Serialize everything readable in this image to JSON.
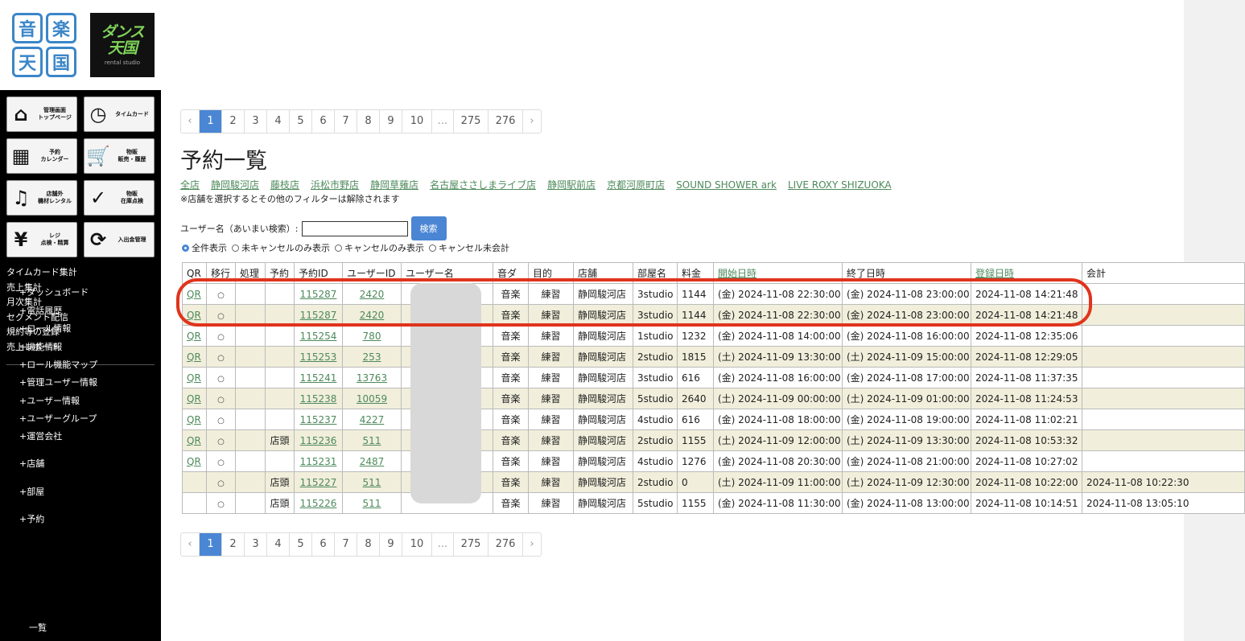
{
  "logos": {
    "logo1_chars": [
      "音",
      "楽",
      "天",
      "国"
    ],
    "logo2_main": "ダンス\n天国",
    "logo2_sub": "rental studio"
  },
  "sidebar": {
    "tiles": [
      {
        "label": "管理画面\nトップページ",
        "icon": "home-icon",
        "glyph": "⌂"
      },
      {
        "label": "タイムカード",
        "icon": "clock-icon",
        "glyph": "◷"
      },
      {
        "label": "予約\nカレンダー",
        "icon": "calendar-icon",
        "glyph": "▦"
      },
      {
        "label": "物販\n販売・履歴",
        "icon": "cart-icon",
        "glyph": "🛒"
      },
      {
        "label": "店舗外\n機材レンタル",
        "icon": "drum-icon",
        "glyph": "♫"
      },
      {
        "label": "物販\n在庫点検",
        "icon": "check-icon",
        "glyph": "✓"
      },
      {
        "label": "レジ\n点検・精算",
        "icon": "yen-icon",
        "glyph": "¥"
      },
      {
        "label": "入出金管理",
        "icon": "refresh-icon",
        "glyph": "⟳"
      }
    ],
    "links": [
      "タイムカード集計",
      "売上集計",
      "月次集計",
      "セグメント配信",
      "規約等の登録",
      "売上レポート"
    ],
    "menu": [
      "+ダッシュボード",
      "+電話履歴",
      "+ロール情報",
      "+機能情報",
      "+ロール機能マップ",
      "+管理ユーザー情報",
      "+ユーザー情報",
      "+ユーザーグループ",
      "+運営会社",
      "+店舗",
      "+部屋",
      "+予約"
    ],
    "submenu": [
      "一覧"
    ]
  },
  "pagination": {
    "prev": "‹",
    "next": "›",
    "pages": [
      "1",
      "2",
      "3",
      "4",
      "5",
      "6",
      "7",
      "8",
      "9",
      "10",
      "...",
      "275",
      "276"
    ],
    "active": "1"
  },
  "page": {
    "title": "予約一覧",
    "shops": [
      "全店",
      "静岡駿河店",
      "藤枝店",
      "浜松市野店",
      "静岡草薙店",
      "名古屋ささしまライブ店",
      "静岡駅前店",
      "京都河原町店",
      "SOUND SHOWER ark",
      "LIVE ROXY SHIZUOKA"
    ],
    "note": "※店舗を選択するとその他のフィルターは解除されます"
  },
  "search": {
    "label": "ユーザー名（あいまい検索）:",
    "value": "",
    "button": "検索"
  },
  "filters": [
    "全件表示",
    "未キャンセルのみ表示",
    "キャンセルのみ表示",
    "キャンセル未会計"
  ],
  "filter_selected": 0,
  "table": {
    "headers": [
      "QR",
      "移行",
      "処理",
      "予約",
      "予約ID",
      "ユーザーID",
      "ユーザー名",
      "音ダ",
      "目的",
      "店舗",
      "部屋名",
      "料金",
      "開始日時",
      "終了日時",
      "登録日時",
      "会計"
    ],
    "rows": [
      {
        "qr": "QR",
        "mig": "○",
        "proc": "",
        "rsv": "",
        "id": "115287",
        "uid": "2420",
        "genre": "音楽",
        "purpose": "練習",
        "shop": "静岡駿河店",
        "room": "3studio",
        "fee": "1144",
        "start": "(金) 2024-11-08 22:30:00",
        "end": "(金) 2024-11-08 23:00:00",
        "reg": "2024-11-08 14:21:48",
        "acct": ""
      },
      {
        "qr": "QR",
        "mig": "○",
        "proc": "",
        "rsv": "",
        "id": "115287",
        "uid": "2420",
        "genre": "音楽",
        "purpose": "練習",
        "shop": "静岡駿河店",
        "room": "3studio",
        "fee": "1144",
        "start": "(金) 2024-11-08 22:30:00",
        "end": "(金) 2024-11-08 23:00:00",
        "reg": "2024-11-08 14:21:48",
        "acct": ""
      },
      {
        "qr": "QR",
        "mig": "○",
        "proc": "",
        "rsv": "",
        "id": "115254",
        "uid": "780",
        "genre": "音楽",
        "purpose": "練習",
        "shop": "静岡駿河店",
        "room": "1studio",
        "fee": "1232",
        "start": "(金) 2024-11-08 14:00:00",
        "end": "(金) 2024-11-08 16:00:00",
        "reg": "2024-11-08 12:35:06",
        "acct": ""
      },
      {
        "qr": "QR",
        "mig": "○",
        "proc": "",
        "rsv": "",
        "id": "115253",
        "uid": "253",
        "genre": "音楽",
        "purpose": "練習",
        "shop": "静岡駿河店",
        "room": "2studio",
        "fee": "1815",
        "start": "(土) 2024-11-09 13:30:00",
        "end": "(土) 2024-11-09 15:00:00",
        "reg": "2024-11-08 12:29:05",
        "acct": ""
      },
      {
        "qr": "QR",
        "mig": "○",
        "proc": "",
        "rsv": "",
        "id": "115241",
        "uid": "13763",
        "genre": "音楽",
        "purpose": "練習",
        "shop": "静岡駿河店",
        "room": "3studio",
        "fee": "616",
        "start": "(金) 2024-11-08 16:00:00",
        "end": "(金) 2024-11-08 17:00:00",
        "reg": "2024-11-08 11:37:35",
        "acct": ""
      },
      {
        "qr": "QR",
        "mig": "○",
        "proc": "",
        "rsv": "",
        "id": "115238",
        "uid": "10059",
        "genre": "音楽",
        "purpose": "練習",
        "shop": "静岡駿河店",
        "room": "5studio",
        "fee": "2640",
        "start": "(土) 2024-11-09 00:00:00",
        "end": "(土) 2024-11-09 01:00:00",
        "reg": "2024-11-08 11:24:53",
        "acct": ""
      },
      {
        "qr": "QR",
        "mig": "○",
        "proc": "",
        "rsv": "",
        "id": "115237",
        "uid": "4227",
        "genre": "音楽",
        "purpose": "練習",
        "shop": "静岡駿河店",
        "room": "4studio",
        "fee": "616",
        "start": "(金) 2024-11-08 18:00:00",
        "end": "(金) 2024-11-08 19:00:00",
        "reg": "2024-11-08 11:02:21",
        "acct": ""
      },
      {
        "qr": "QR",
        "mig": "○",
        "proc": "",
        "rsv": "店頭",
        "id": "115236",
        "uid": "511",
        "genre": "音楽",
        "purpose": "練習",
        "shop": "静岡駿河店",
        "room": "2studio",
        "fee": "1155",
        "start": "(土) 2024-11-09 12:00:00",
        "end": "(土) 2024-11-09 13:30:00",
        "reg": "2024-11-08 10:53:32",
        "acct": ""
      },
      {
        "qr": "QR",
        "mig": "○",
        "proc": "",
        "rsv": "",
        "id": "115231",
        "uid": "2487",
        "genre": "音楽",
        "purpose": "練習",
        "shop": "静岡駿河店",
        "room": "4studio",
        "fee": "1276",
        "start": "(金) 2024-11-08 20:30:00",
        "end": "(金) 2024-11-08 21:00:00",
        "reg": "2024-11-08 10:27:02",
        "acct": ""
      },
      {
        "qr": "",
        "mig": "○",
        "proc": "",
        "rsv": "店頭",
        "id": "115227",
        "uid": "511",
        "genre": "音楽",
        "purpose": "練習",
        "shop": "静岡駿河店",
        "room": "2studio",
        "fee": "0",
        "start": "(土) 2024-11-09 11:00:00",
        "end": "(土) 2024-11-09 12:30:00",
        "reg": "2024-11-08 10:22:00",
        "acct": "2024-11-08 10:22:30"
      },
      {
        "qr": "",
        "mig": "○",
        "proc": "",
        "rsv": "店頭",
        "id": "115226",
        "uid": "511",
        "genre": "音楽",
        "purpose": "練習",
        "shop": "静岡駿河店",
        "room": "5studio",
        "fee": "1155",
        "start": "(金) 2024-11-08 11:30:00",
        "end": "(金) 2024-11-08 13:00:00",
        "reg": "2024-11-08 10:14:51",
        "acct": "2024-11-08 13:05:10"
      }
    ]
  },
  "colors": {
    "accent": "#4a86d4",
    "link": "#4d8a5b",
    "highlight": "#e0341d",
    "row_alt": "#f1eedb"
  }
}
